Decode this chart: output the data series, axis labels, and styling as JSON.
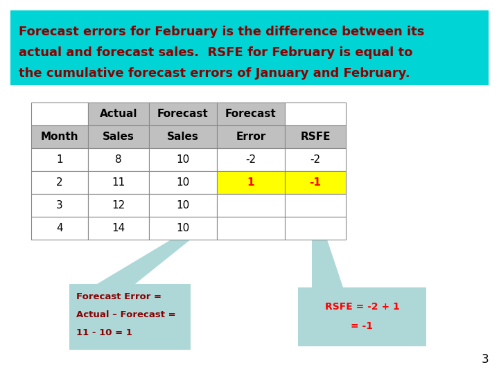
{
  "bg_color": "#ffffff",
  "header_box_color": "#00d4d4",
  "header_text_color": "#8b0000",
  "header_text_line1": "Forecast errors for February is the difference between its",
  "header_text_line2": "actual and forecast sales.  RSFE for February is equal to",
  "header_text_line3": "the cumulative forecast errors of January and February.",
  "table_col_headers_row1": [
    "",
    "Actual",
    "Forecast",
    "Forecast",
    ""
  ],
  "table_col_headers_row2": [
    "Month",
    "Sales",
    "Sales",
    "Error",
    "RSFE"
  ],
  "table_data": [
    [
      "1",
      "8",
      "10",
      "-2",
      "-2"
    ],
    [
      "2",
      "11",
      "10",
      "1",
      "-1"
    ],
    [
      "3",
      "12",
      "10",
      "",
      ""
    ],
    [
      "4",
      "14",
      "10",
      "",
      ""
    ]
  ],
  "highlight_row": 1,
  "highlight_cols": [
    3,
    4
  ],
  "highlight_bg": "#ffff00",
  "highlight_text_color": "#ff0000",
  "callout_bg": "#aed8d8",
  "callout1_text_color": "#8b0000",
  "callout1_text_line1": "Forecast Error =",
  "callout1_text_line2": "Actual – Forecast =",
  "callout1_text_line3": "11 - 10 = 1",
  "callout2_text_color": "#ff0000",
  "callout2_text_line1": "RSFE = -2 + 1",
  "callout2_text_line2": "= -1",
  "page_number": "3",
  "table_border_color": "#888888",
  "table_header_bg": "#c0c0c0",
  "table_text_color": "#000000",
  "table_font_size": 11,
  "header_font_size": 13
}
